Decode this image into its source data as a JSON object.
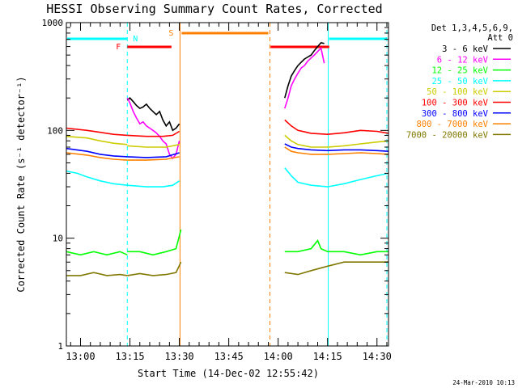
{
  "chart_data": {
    "type": "line",
    "title": "HESSI Observing Summary Count Rates, Corrected",
    "xlabel": "Start Time (14-Dec-02 12:55:42)",
    "ylabel": "Corrected Count Rate (s⁻¹ detector⁻¹)",
    "x_tick_labels": [
      "13:00",
      "13:15",
      "13:30",
      "13:45",
      "14:00",
      "14:15",
      "14:30"
    ],
    "x_ticks_minutes_after_1300": [
      0,
      15,
      30,
      45,
      60,
      75,
      90
    ],
    "xlim_minutes_after_1300": [
      -4.3,
      93.5
    ],
    "y_scale": "log",
    "ylim": [
      1,
      1000
    ],
    "y_tick_labels": [
      "1",
      "10",
      "100",
      "1000"
    ],
    "y_tick_values": [
      1,
      10,
      100,
      1000
    ],
    "legend": {
      "placement": "right",
      "header_lines": [
        "Det 1,3,4,5,6,9,",
        "Att 0"
      ],
      "entries": [
        {
          "label": "3 - 6 keV",
          "color": "#000000"
        },
        {
          "label": "6 - 12 keV",
          "color": "#ff00ff"
        },
        {
          "label": "12 - 25 keV",
          "color": "#00ff00"
        },
        {
          "label": "25 - 50 keV",
          "color": "#00ffff"
        },
        {
          "label": "50 - 100 keV",
          "color": "#cccc00"
        },
        {
          "label": "100 - 300 keV",
          "color": "#ff0000"
        },
        {
          "label": "300 - 800 keV",
          "color": "#0000ff"
        },
        {
          "label": "800 - 7000 keV",
          "color": "#ff8000"
        },
        {
          "label": "7000 - 20000 keV",
          "color": "#807800"
        }
      ]
    },
    "series": [
      {
        "color": "#000000",
        "segments": [
          {
            "x": [
              14.2,
              15,
              16,
              17,
              18,
              19,
              20,
              21,
              22,
              23,
              24,
              25,
              26,
              27,
              28,
              29,
              30
            ],
            "y": [
              190,
              200,
              185,
              170,
              160,
              165,
              175,
              160,
              150,
              140,
              150,
              125,
              110,
              120,
              100,
              105,
              115
            ]
          },
          {
            "x": [
              62,
              63,
              64,
              65,
              66,
              67,
              68,
              69,
              70,
              71,
              72,
              73,
              74
            ],
            "y": [
              200,
              260,
              320,
              360,
              400,
              430,
              460,
              480,
              500,
              550,
              600,
              650,
              640
            ]
          }
        ]
      },
      {
        "color": "#ff00ff",
        "segments": [
          {
            "x": [
              14.2,
              15,
              16,
              17,
              18,
              19,
              20,
              21,
              22,
              23,
              24,
              25,
              26,
              27,
              28,
              29,
              30
            ],
            "y": [
              200,
              180,
              150,
              130,
              115,
              120,
              110,
              105,
              100,
              95,
              88,
              80,
              75,
              60,
              55,
              60,
              80
            ]
          },
          {
            "x": [
              62,
              63,
              64,
              65,
              66,
              67,
              68,
              69,
              70,
              71,
              72,
              73,
              74
            ],
            "y": [
              160,
              200,
              260,
              300,
              340,
              380,
              400,
              440,
              470,
              500,
              540,
              580,
              420
            ]
          }
        ]
      },
      {
        "color": "#00ff00",
        "segments": [
          {
            "x": [
              -4.3,
              0,
              4,
              8,
              12,
              14.2
            ],
            "y": [
              7.5,
              7,
              7.5,
              7,
              7.5,
              7
            ]
          },
          {
            "x": [
              14.2,
              18,
              22,
              26,
              29,
              30.5
            ],
            "y": [
              7.5,
              7.5,
              7,
              7.5,
              8,
              12
            ]
          },
          {
            "x": [
              62,
              66,
              70,
              72,
              73,
              75,
              80,
              85,
              90,
              93.5
            ],
            "y": [
              7.5,
              7.5,
              8,
              9.5,
              8,
              7.5,
              7.5,
              7,
              7.5,
              7.5
            ]
          }
        ]
      },
      {
        "color": "#00ffff",
        "segments": [
          {
            "x": [
              -4.3,
              -1,
              2,
              6,
              10,
              14.2
            ],
            "y": [
              42,
              40,
              37,
              34,
              32,
              31
            ]
          },
          {
            "x": [
              14.2,
              20,
              25,
              28,
              30
            ],
            "y": [
              31,
              30,
              30,
              31,
              34
            ]
          },
          {
            "x": [
              62,
              64,
              66,
              70,
              75,
              80,
              85,
              90,
              93.5
            ],
            "y": [
              45,
              38,
              33,
              31,
              30,
              32,
              35,
              38,
              40
            ]
          }
        ]
      },
      {
        "color": "#cccc00",
        "segments": [
          {
            "x": [
              -4.3,
              2,
              6,
              10,
              14.2
            ],
            "y": [
              88,
              85,
              80,
              76,
              74
            ]
          },
          {
            "x": [
              14.2,
              20,
              26,
              30
            ],
            "y": [
              72,
              70,
              70,
              74
            ]
          },
          {
            "x": [
              62,
              64,
              66,
              70,
              75,
              80,
              85,
              90,
              93.5
            ],
            "y": [
              90,
              80,
              74,
              70,
              70,
              72,
              75,
              78,
              80
            ]
          }
        ]
      },
      {
        "color": "#ff0000",
        "segments": [
          {
            "x": [
              -4.3,
              2,
              6,
              10,
              14.2
            ],
            "y": [
              105,
              100,
              96,
              92,
              90
            ]
          },
          {
            "x": [
              14.2,
              20,
              25,
              28,
              30
            ],
            "y": [
              90,
              88,
              88,
              90,
              98
            ]
          },
          {
            "x": [
              62,
              64,
              66,
              70,
              75,
              80,
              85,
              90,
              93.5
            ],
            "y": [
              125,
              110,
              100,
              94,
              92,
              95,
              100,
              98,
              94
            ]
          }
        ]
      },
      {
        "color": "#0000ff",
        "segments": [
          {
            "x": [
              -4.3,
              2,
              6,
              10,
              14.2
            ],
            "y": [
              68,
              64,
              60,
              58,
              57
            ]
          },
          {
            "x": [
              14.2,
              20,
              26,
              30
            ],
            "y": [
              57,
              56,
              57,
              62
            ]
          },
          {
            "x": [
              62,
              64,
              66,
              70,
              75,
              80,
              85,
              90,
              93.5
            ],
            "y": [
              75,
              70,
              68,
              66,
              65,
              66,
              66,
              65,
              64
            ]
          }
        ]
      },
      {
        "color": "#ff8000",
        "segments": [
          {
            "x": [
              -4.3,
              2,
              6,
              10,
              14.2
            ],
            "y": [
              62,
              59,
              56,
              54,
              53
            ]
          },
          {
            "x": [
              14.2,
              20,
              26,
              30
            ],
            "y": [
              53,
              53,
              54,
              57
            ]
          },
          {
            "x": [
              62,
              64,
              66,
              70,
              75,
              80,
              85,
              90,
              93.5
            ],
            "y": [
              70,
              64,
              62,
              60,
              60,
              61,
              62,
              61,
              60
            ]
          }
        ]
      },
      {
        "color": "#807800",
        "segments": [
          {
            "x": [
              -4.3,
              0,
              4,
              8,
              12,
              14.2
            ],
            "y": [
              4.5,
              4.5,
              4.8,
              4.5,
              4.6,
              4.5
            ]
          },
          {
            "x": [
              14.2,
              18,
              22,
              26,
              29,
              30.5
            ],
            "y": [
              4.5,
              4.7,
              4.5,
              4.6,
              4.8,
              6
            ]
          },
          {
            "x": [
              62,
              66,
              70,
              75,
              80,
              85,
              90,
              93.5
            ],
            "y": [
              4.8,
              4.6,
              5,
              5.5,
              6,
              6,
              6,
              6
            ]
          }
        ]
      }
    ],
    "annotations": {
      "night_periods_minutes": [
        [
          -4.3,
          14.2
        ],
        [
          75.2,
          93
        ]
      ],
      "night_label": "N",
      "flare_bars_minutes": [
        [
          14.2,
          27.6
        ],
        [
          57.7,
          75.5
        ]
      ],
      "flare_label": "F",
      "saa_period_minutes": [
        30.2,
        57.5
      ],
      "saa_label": "S",
      "night_color": "#00ffff",
      "flare_color": "#ff0000",
      "saa_color": "#ff8000"
    }
  },
  "timestamp": "24-Mar-2010 10:13"
}
